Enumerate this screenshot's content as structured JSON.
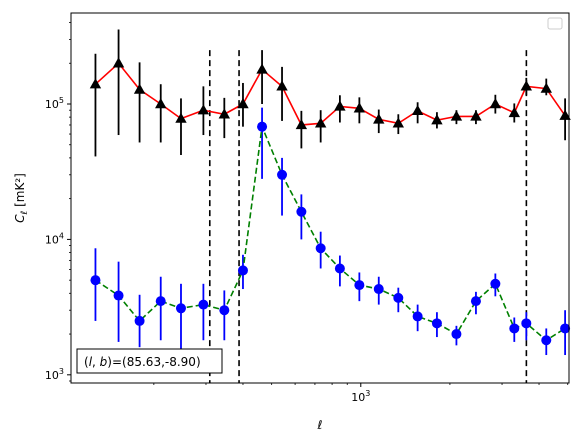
{
  "chart_data": {
    "type": "line",
    "xscale": "log",
    "yscale": "log",
    "xlim": [
      105,
      5050
    ],
    "ylim": [
      870,
      470000
    ],
    "xlabel": "ℓ",
    "ylabel": "C_ℓ [mK²]",
    "x_ticks": [
      {
        "value": 1000,
        "label": "10^3"
      }
    ],
    "y_ticks": [
      {
        "value": 1000,
        "label": "10^3"
      },
      {
        "value": 10000,
        "label": "10^4"
      },
      {
        "value": 100000,
        "label": "10^5"
      }
    ],
    "grid": false,
    "legend": {
      "placement": "top-right",
      "entries": []
    },
    "vlines": [
      309,
      388,
      3625
    ],
    "annotation": {
      "prefix": "(l, b)",
      "value": "=(85.63,-8.90)"
    },
    "series": [
      {
        "color": "#ff0000",
        "linestyle": "solid",
        "marker": "triangle",
        "marker_color": "#000000",
        "errorbar_color": "#000000",
        "x": [
          127,
          152,
          179,
          211,
          247,
          294,
          346,
          400,
          464,
          542,
          630,
          732,
          850,
          989,
          1150,
          1339,
          1556,
          1808,
          2104,
          2449,
          2848,
          3300,
          3623,
          4232,
          4899
        ],
        "y": [
          140000,
          200000,
          128000,
          100000,
          78000,
          90000,
          84000,
          100000,
          180000,
          135000,
          70000,
          72000,
          96000,
          93000,
          77000,
          72000,
          89000,
          76000,
          81000,
          81000,
          100000,
          86000,
          135000,
          130000,
          82000
        ],
        "err_low": [
          99000,
          141000,
          76000,
          48000,
          36000,
          31000,
          28000,
          32000,
          80000,
          60000,
          23000,
          20000,
          23000,
          21000,
          16000,
          12000,
          17000,
          10000,
          10000,
          10000,
          15000,
          13000,
          19000,
          14000,
          28000
        ],
        "err_high": [
          95000,
          155000,
          75000,
          40000,
          32000,
          45000,
          27000,
          43000,
          70000,
          53000,
          19000,
          18000,
          20000,
          19000,
          14000,
          12000,
          14000,
          11000,
          9000,
          9000,
          17000,
          15000,
          21000,
          24000,
          28000
        ]
      },
      {
        "color": "#008000",
        "linestyle": "dashed",
        "marker": "circle",
        "marker_color": "#0000ff",
        "errorbar_color": "#0000ff",
        "x": [
          127,
          152,
          179,
          211,
          247,
          294,
          346,
          400,
          464,
          542,
          630,
          732,
          850,
          989,
          1150,
          1339,
          1556,
          1808,
          2104,
          2449,
          2848,
          3300,
          3623,
          4232,
          4899
        ],
        "y": [
          5000,
          3850,
          2500,
          3500,
          3100,
          3300,
          3000,
          5900,
          68000,
          30000,
          16000,
          8600,
          6100,
          4600,
          4300,
          3700,
          2700,
          2400,
          2000,
          3500,
          4700,
          2200,
          2400,
          1800,
          2200
        ],
        "err_low": [
          2500,
          2100,
          900,
          1700,
          1600,
          1500,
          1200,
          1600,
          40000,
          15000,
          6000,
          2500,
          1600,
          1100,
          1000,
          800,
          600,
          500,
          350,
          700,
          900,
          450,
          600,
          400,
          800
        ],
        "err_high": [
          3600,
          3000,
          1400,
          1800,
          1600,
          1400,
          1200,
          1800,
          26000,
          10000,
          5500,
          2800,
          1500,
          1100,
          1000,
          700,
          600,
          500,
          300,
          600,
          900,
          450,
          500,
          400,
          800
        ]
      }
    ]
  }
}
